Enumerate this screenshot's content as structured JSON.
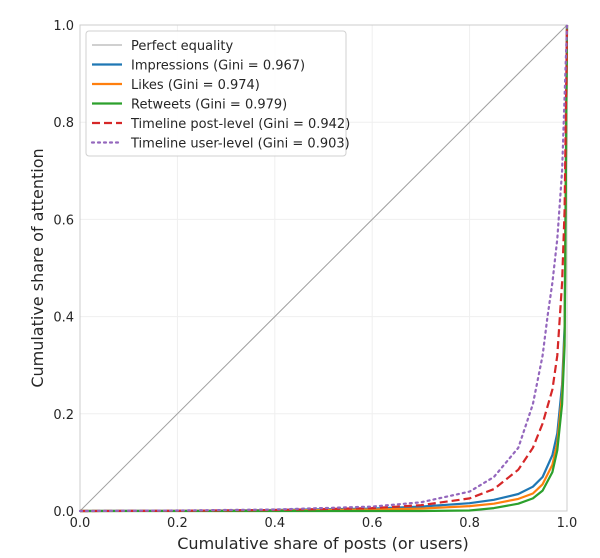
{
  "chart_data": {
    "type": "line",
    "title": "",
    "xlabel": "Cumulative share of posts (or users)",
    "ylabel": "Cumulative share of attention",
    "xlim": [
      0,
      1
    ],
    "ylim": [
      0,
      1
    ],
    "xticks": [
      "0.0",
      "0.2",
      "0.4",
      "0.6",
      "0.8",
      "1.0"
    ],
    "yticks": [
      "0.0",
      "0.2",
      "0.4",
      "0.6",
      "0.8",
      "1.0"
    ],
    "grid": true,
    "legend_placement": "top-left",
    "series": [
      {
        "name": "Perfect equality",
        "color": "#a0a0a0",
        "style": "solid",
        "x": [
          0,
          1
        ],
        "y": [
          0,
          1
        ]
      },
      {
        "name": "Impressions (Gini = 0.967)",
        "color": "#1f77b4",
        "style": "solid",
        "x": [
          0,
          0.2,
          0.4,
          0.6,
          0.7,
          0.8,
          0.85,
          0.9,
          0.93,
          0.95,
          0.97,
          0.98,
          0.99,
          0.995,
          1
        ],
        "y": [
          0,
          0.0005,
          0.002,
          0.005,
          0.009,
          0.016,
          0.023,
          0.035,
          0.05,
          0.07,
          0.115,
          0.16,
          0.26,
          0.38,
          1
        ]
      },
      {
        "name": "Likes (Gini = 0.974)",
        "color": "#ff7f0e",
        "style": "solid",
        "x": [
          0,
          0.2,
          0.4,
          0.6,
          0.7,
          0.8,
          0.85,
          0.9,
          0.93,
          0.95,
          0.97,
          0.98,
          0.99,
          0.995,
          1
        ],
        "y": [
          0,
          0.0003,
          0.001,
          0.003,
          0.005,
          0.01,
          0.015,
          0.025,
          0.036,
          0.055,
          0.095,
          0.14,
          0.24,
          0.36,
          1
        ]
      },
      {
        "name": "Retweets (Gini = 0.979)",
        "color": "#2ca02c",
        "style": "solid",
        "x": [
          0,
          0.2,
          0.4,
          0.6,
          0.7,
          0.8,
          0.85,
          0.9,
          0.93,
          0.95,
          0.97,
          0.98,
          0.99,
          0.995,
          1
        ],
        "y": [
          0,
          0,
          0,
          0,
          0,
          0.001,
          0.006,
          0.015,
          0.026,
          0.042,
          0.08,
          0.125,
          0.22,
          0.34,
          1
        ]
      },
      {
        "name": "Timeline post-level (Gini = 0.942)",
        "color": "#d62728",
        "style": "dashed",
        "x": [
          0,
          0.2,
          0.4,
          0.6,
          0.7,
          0.8,
          0.85,
          0.9,
          0.93,
          0.95,
          0.97,
          0.98,
          0.99,
          0.995,
          1
        ],
        "y": [
          0,
          0.0005,
          0.002,
          0.006,
          0.012,
          0.026,
          0.045,
          0.085,
          0.13,
          0.18,
          0.25,
          0.32,
          0.47,
          0.62,
          1
        ]
      },
      {
        "name": "Timeline user-level (Gini = 0.903)",
        "color": "#9467bd",
        "style": "dotted",
        "x": [
          0,
          0.2,
          0.4,
          0.6,
          0.7,
          0.8,
          0.85,
          0.9,
          0.93,
          0.95,
          0.96,
          0.97,
          0.98,
          0.99,
          1
        ],
        "y": [
          0,
          0.001,
          0.003,
          0.009,
          0.018,
          0.04,
          0.07,
          0.13,
          0.22,
          0.32,
          0.4,
          0.47,
          0.56,
          0.7,
          1
        ]
      }
    ]
  }
}
